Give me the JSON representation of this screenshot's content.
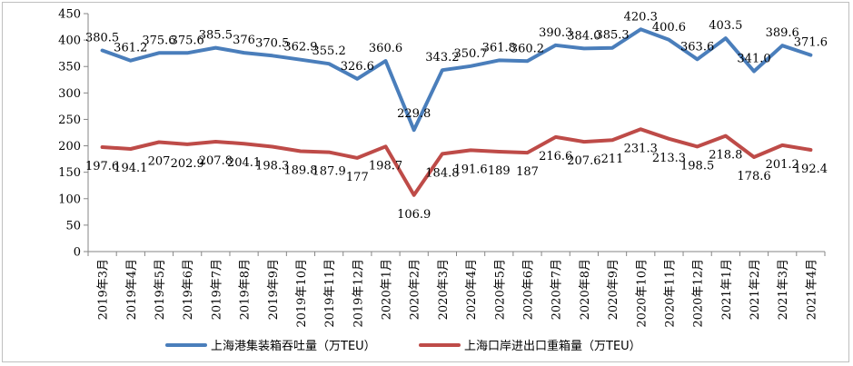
{
  "chart_data": {
    "type": "line",
    "categories": [
      "2019年3月",
      "2019年4月",
      "2019年5月",
      "2019年6月",
      "2019年7月",
      "2019年8月",
      "2019年9月",
      "2019年10月",
      "2019年11月",
      "2019年12月",
      "2020年1月",
      "2020年2月",
      "2020年3月",
      "2020年4月",
      "2020年5月",
      "2020年6月",
      "2020年7月",
      "2020年8月",
      "2020年9月",
      "2020年10月",
      "2020年11月",
      "2020年12月",
      "2021年1月",
      "2021年2月",
      "2021年3月",
      "2021年4月"
    ],
    "series": [
      {
        "name": "上海港集装箱吞吐量（万TEU）",
        "color": "#4a7ebb",
        "values": [
          380.5,
          361.2,
          375.6,
          375.6,
          385.5,
          376,
          370.5,
          362.9,
          355.2,
          326.6,
          360.6,
          229.8,
          343.2,
          350.7,
          361.8,
          360.2,
          390.3,
          384.0,
          385.3,
          420.3,
          400.6,
          363.6,
          403.5,
          341.0,
          389.6,
          371.6
        ],
        "labels": [
          "380.5",
          "361.2",
          "375.6",
          "375.6",
          "385.5",
          "376",
          "370.5",
          "362.9",
          "355.2",
          "326.6",
          "360.6",
          "229.8",
          "343.2",
          "350.7",
          "361.8",
          "360.2",
          "390.3",
          "384.0",
          "385.3",
          "420.3",
          "400.6",
          "363.6",
          "403.5",
          "341.0",
          "389.6",
          "371.6"
        ]
      },
      {
        "name": "上海口岸进出口重箱量（万TEU）",
        "color": "#be4b48",
        "values": [
          197.6,
          194.1,
          207,
          202.9,
          207.8,
          204.1,
          198.3,
          189.8,
          187.9,
          177,
          198.7,
          106.9,
          184.8,
          191.6,
          189,
          187,
          216.6,
          207.6,
          211,
          231.3,
          213.3,
          198.5,
          218.8,
          178.6,
          201.2,
          192.4
        ],
        "labels": [
          "197.6",
          "194.1",
          "207",
          "202.9",
          "207.8",
          "204.1",
          "198.3",
          "189.8",
          "187.9",
          "177",
          "198.7",
          "106.9",
          "184.8",
          "191.6",
          "189",
          "187",
          "216.6",
          "207.6",
          "211",
          "231.3",
          "213.3",
          "198.5",
          "218.8",
          "178.6",
          "201.2",
          "192.4"
        ]
      }
    ],
    "ylim": [
      0,
      450
    ],
    "yticks": [
      0,
      50,
      100,
      150,
      200,
      250,
      300,
      350,
      400,
      450
    ],
    "grid": false,
    "legend_position": "bottom"
  }
}
